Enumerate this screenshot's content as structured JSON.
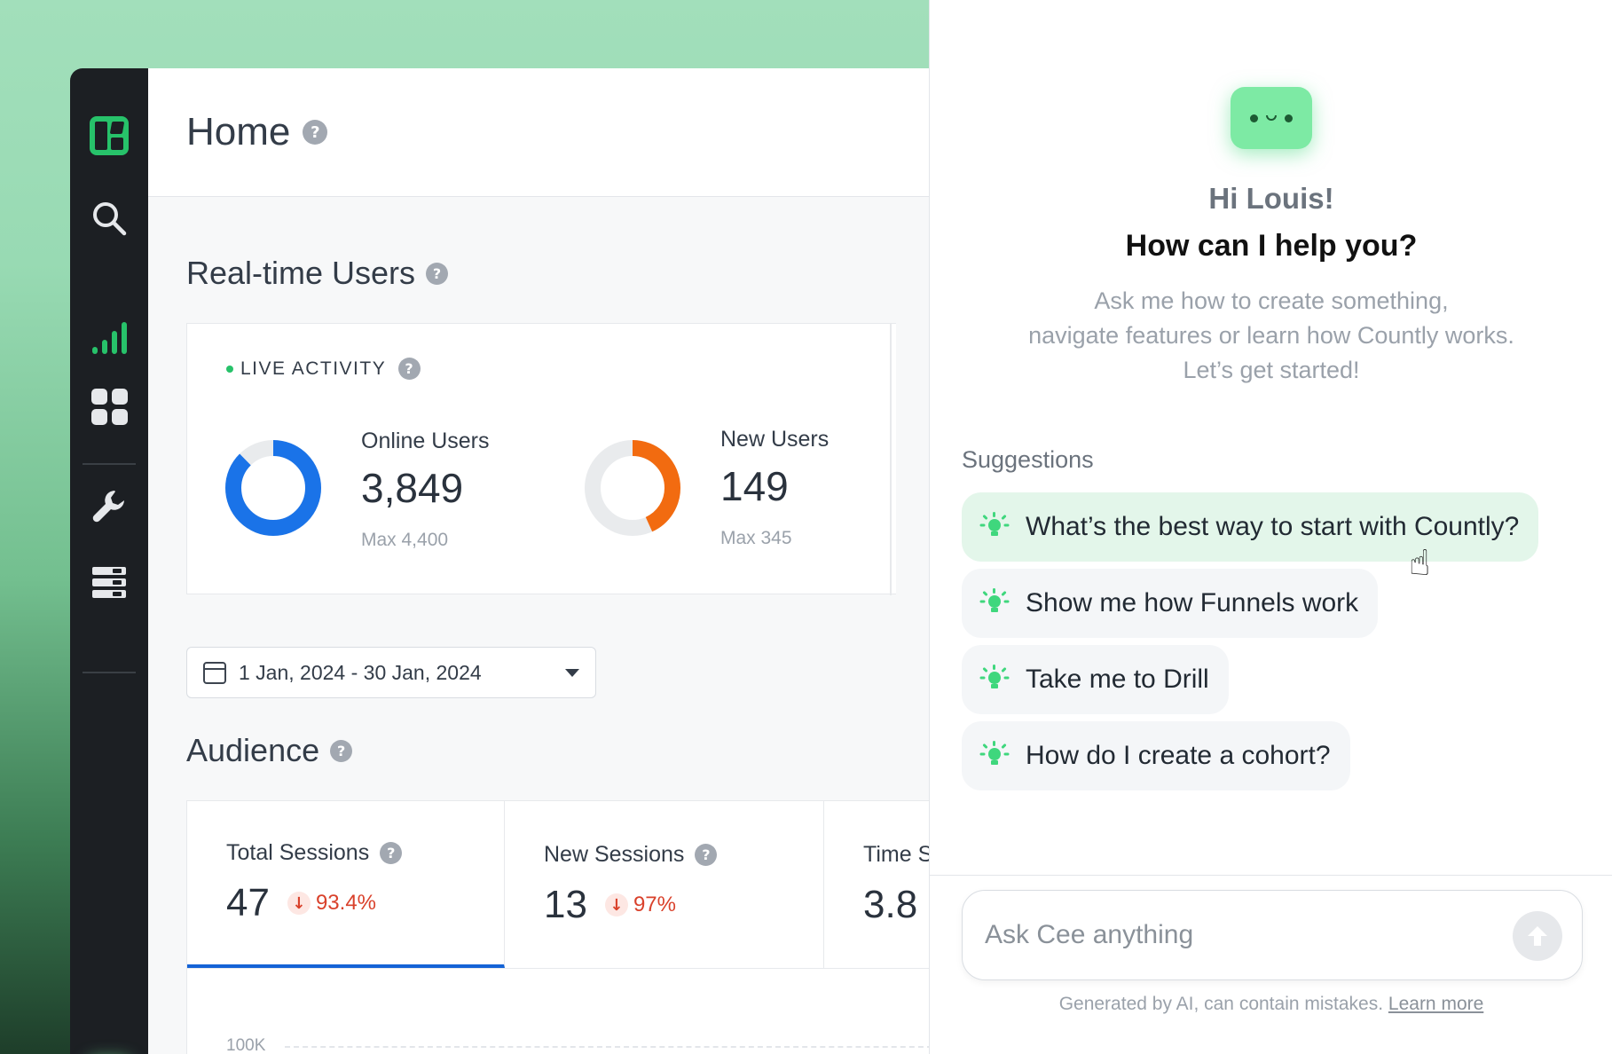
{
  "colors": {
    "brand_green": "#27c26a",
    "online_ring": "#1a73e8",
    "new_ring": "#f26b10",
    "trend_down": "#d9412b",
    "active_tab": "#1463d6",
    "suggestion_highlight": "#e3f6ea"
  },
  "sidebar": {
    "items": [
      {
        "icon": "countly-logo-icon"
      },
      {
        "icon": "search-icon"
      },
      {
        "icon": "analytics-bars-icon",
        "active": true
      },
      {
        "icon": "dashboards-grid-icon"
      },
      {
        "icon": "wrench-icon"
      },
      {
        "icon": "management-stack-icon"
      },
      {
        "icon": "assistant-bot-icon"
      }
    ]
  },
  "header": {
    "title": "Home"
  },
  "realtime": {
    "title": "Real-time Users",
    "live_label": "LIVE ACTIVITY",
    "online": {
      "label": "Online Users",
      "value": "3,849",
      "max_text": "Max 4,400",
      "value_num": 3849,
      "max_num": 4400
    },
    "new_users": {
      "label": "New Users",
      "value": "149",
      "max_text": "Max 345",
      "value_num": 149,
      "max_num": 345
    }
  },
  "date_range": {
    "value": "1 Jan, 2024 - 30 Jan, 2024"
  },
  "audience": {
    "title": "Audience",
    "tabs": [
      {
        "label": "Total Sessions",
        "value": "47",
        "trend": "93.4%",
        "direction": "down",
        "active": true
      },
      {
        "label": "New Sessions",
        "value": "13",
        "trend": "97%",
        "direction": "down",
        "active": false
      },
      {
        "label": "Time S",
        "value": "3.8",
        "active": false
      }
    ],
    "chart_y_label": "100K"
  },
  "assistant": {
    "greeting": "Hi Louis!",
    "question": "How can I help you?",
    "intro_lines": [
      "Ask me how to create something,",
      "navigate features or learn how Countly works.",
      "Let’s get started!"
    ],
    "suggestions_title": "Suggestions",
    "suggestions": [
      "What’s the best way to start with Countly?",
      "Show me how Funnels work",
      "Take me to Drill",
      "How do I create a cohort?"
    ],
    "input_placeholder": "Ask Cee anything",
    "disclaimer": "Generated by AI, can contain mistakes.",
    "learn_more": "Learn more"
  }
}
